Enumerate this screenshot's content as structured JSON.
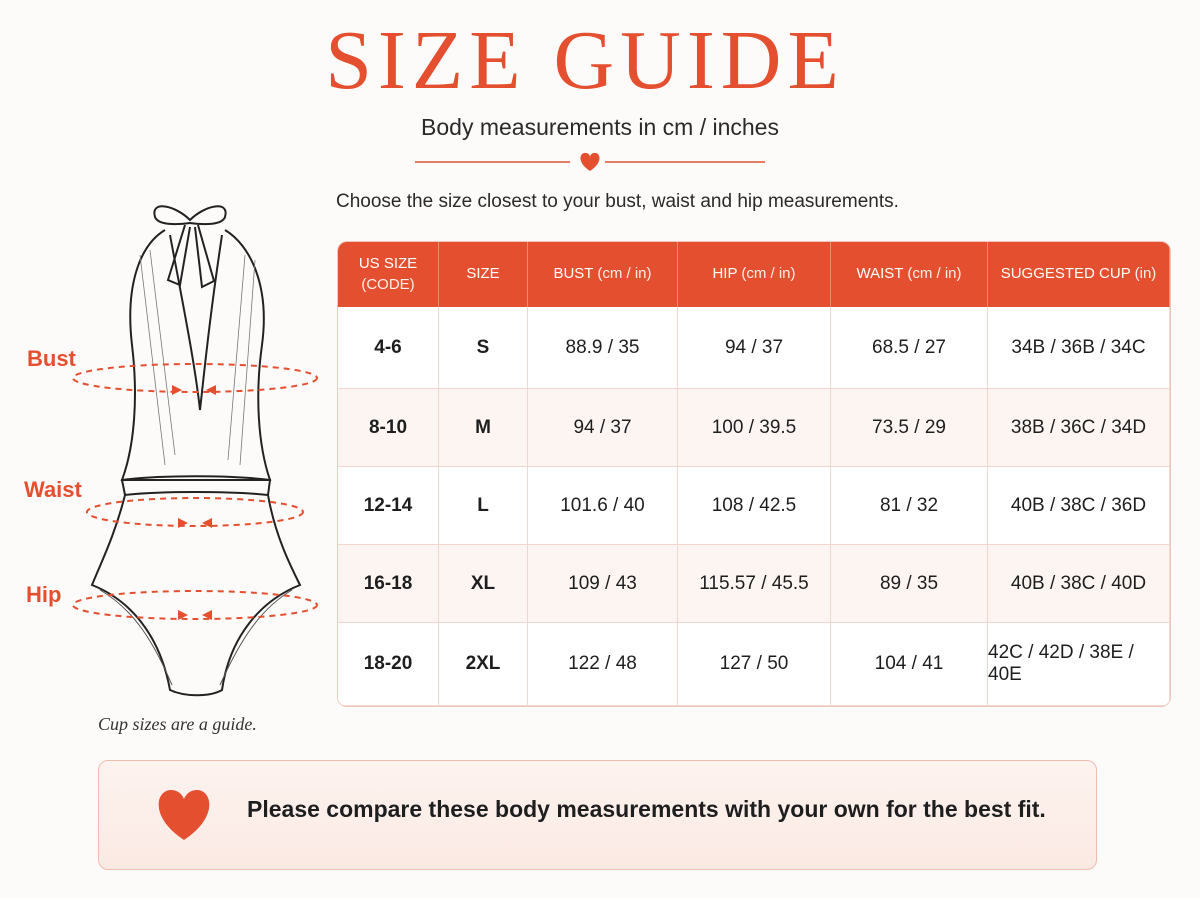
{
  "header": {
    "title": "SIZE GUIDE",
    "subtitle": "Body measurements in cm / inches"
  },
  "instruction": "Choose the size closest to your bust, waist and hip measurements.",
  "figure": {
    "labels": [
      "Bust",
      "Waist",
      "Hip"
    ],
    "note": "Cup sizes are a guide."
  },
  "table": {
    "columns": [
      {
        "main": "US SIZE",
        "unit": "(CODE)"
      },
      {
        "main": "SIZE",
        "unit": null
      },
      {
        "main": "BUST",
        "unit": "(cm / in)"
      },
      {
        "main": "HIP",
        "unit": "(cm / in)"
      },
      {
        "main": "WAIST",
        "unit": "(cm / in)"
      },
      {
        "main": "SUGGESTED CUP",
        "unit": "(in)"
      }
    ],
    "rows": [
      [
        "4-6",
        "S",
        "88.9 / 35",
        "94 / 37",
        "68.5 / 27",
        "34B / 36B / 34C"
      ],
      [
        "8-10",
        "M",
        "94 / 37",
        "100 / 39.5",
        "73.5 / 29",
        "38B / 36C / 34D"
      ],
      [
        "12-14",
        "L",
        "101.6 / 40",
        "108 / 42.5",
        "81 / 32",
        "40B / 38C / 36D"
      ],
      [
        "16-18",
        "XL",
        "109 / 43",
        "115.57 / 45.5",
        "89 / 35",
        "40B / 38C / 40D"
      ],
      [
        "18-20",
        "2XL",
        "122 / 48",
        "127 / 50",
        "104 / 41",
        "42C / 42D / 38E / 40E"
      ]
    ]
  },
  "footer": "Please compare these body measurements with your own for the best fit."
}
